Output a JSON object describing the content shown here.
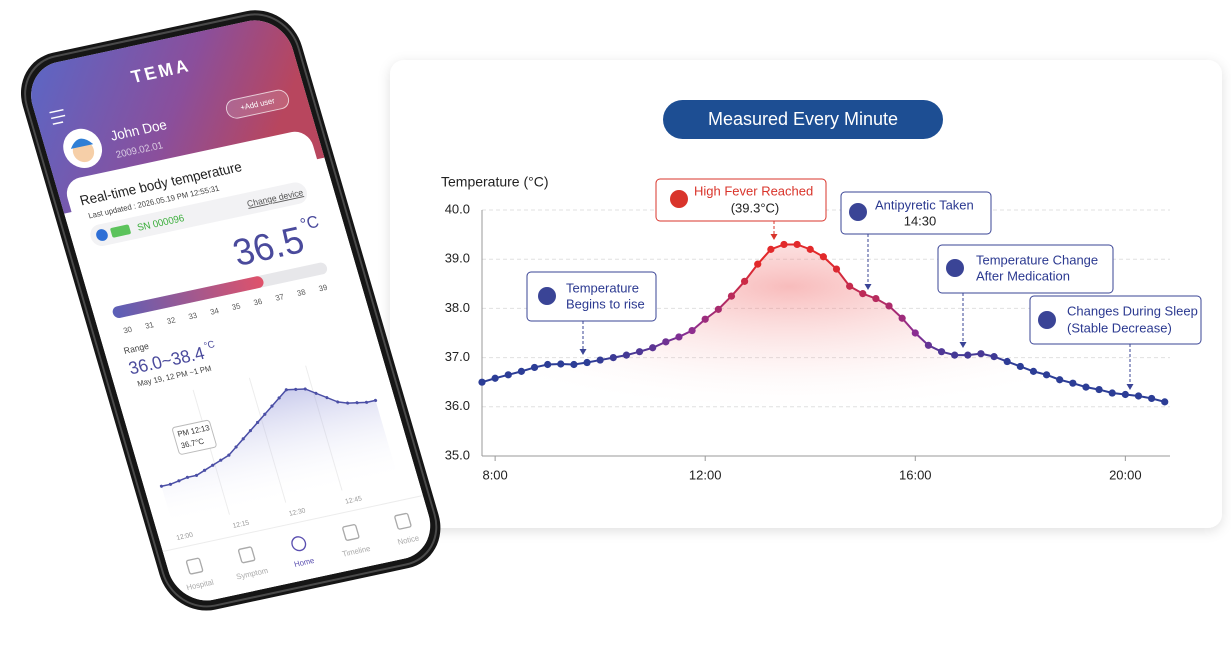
{
  "phone": {
    "logo": "TEMA",
    "user": {
      "name": "John Doe",
      "birth": "2009.02.01"
    },
    "add_user": "+Add user",
    "card": {
      "title": "Real-time body temperature",
      "updated": "Last updated : 2026.05.19 PM 12:55:31",
      "serial": "SN 000096",
      "change": "Change device",
      "temperature": 36.5,
      "unit": "°C",
      "scale": [
        30,
        31,
        32,
        33,
        34,
        35,
        36,
        37,
        38,
        39
      ],
      "range_label": "Range",
      "range": "36.0~38.4",
      "range_unit": "°C",
      "range_period": "May 19, 12 PM ~1 PM"
    },
    "chart": {
      "values": [
        36.3,
        36.3,
        36.35,
        36.4,
        36.4,
        36.5,
        36.6,
        36.7,
        36.8,
        37.0,
        37.2,
        37.4,
        37.6,
        37.8,
        38.0,
        38.2,
        38.4,
        38.35,
        38.3,
        38.1,
        37.9,
        37.7,
        37.6,
        37.55,
        37.5,
        37.5
      ],
      "ylim": [
        35,
        39
      ],
      "tooltip": [
        "PM 12:13",
        "36.7°C"
      ],
      "xticks": [
        "12:00",
        "12:15",
        "12:30",
        "12:45"
      ]
    },
    "nav": [
      "Hospital",
      "Symptom",
      "Home",
      "Timeline",
      "Notice"
    ]
  },
  "chart_data": {
    "type": "line",
    "title": "Measured Every Minute",
    "ylabel": "Temperature (°C)",
    "x": [
      7.75,
      8.0,
      8.25,
      8.5,
      8.75,
      9.0,
      9.25,
      9.5,
      9.75,
      10.0,
      10.25,
      10.5,
      10.75,
      11.0,
      11.25,
      11.5,
      11.75,
      12.0,
      12.25,
      12.5,
      12.75,
      13.0,
      13.25,
      13.5,
      13.75,
      14.0,
      14.25,
      14.5,
      14.75,
      15.0,
      15.25,
      15.5,
      15.75,
      16.0,
      16.25,
      16.5,
      16.75,
      17.0,
      17.25,
      17.5,
      17.75,
      18.0,
      18.25,
      18.5,
      18.75,
      19.0,
      19.25,
      19.5,
      19.75,
      20.0,
      20.25,
      20.5,
      20.75
    ],
    "values": [
      36.5,
      36.58,
      36.65,
      36.72,
      36.8,
      36.86,
      36.87,
      36.86,
      36.9,
      36.95,
      37.0,
      37.05,
      37.12,
      37.2,
      37.32,
      37.42,
      37.55,
      37.78,
      37.98,
      38.25,
      38.55,
      38.9,
      39.2,
      39.3,
      39.3,
      39.2,
      39.05,
      38.8,
      38.45,
      38.3,
      38.2,
      38.05,
      37.8,
      37.5,
      37.25,
      37.12,
      37.05,
      37.05,
      37.08,
      37.02,
      36.92,
      36.82,
      36.72,
      36.65,
      36.55,
      36.48,
      36.4,
      36.35,
      36.28,
      36.25,
      36.22,
      36.17,
      36.1
    ],
    "xlim": [
      7.75,
      20.85
    ],
    "ylim": [
      35,
      40
    ],
    "xticks": [
      {
        "value": 8,
        "label": "8:00"
      },
      {
        "value": 12,
        "label": "12:00"
      },
      {
        "value": 16,
        "label": "16:00"
      },
      {
        "value": 20,
        "label": "20:00"
      }
    ],
    "yticks": [
      {
        "value": 35,
        "label": "35.0"
      },
      {
        "value": 36,
        "label": "36.0"
      },
      {
        "value": 37,
        "label": "37.0"
      },
      {
        "value": 38,
        "label": "38.0"
      },
      {
        "value": 39,
        "label": "39.0"
      },
      {
        "value": 40,
        "label": "40.0"
      }
    ],
    "grid": true,
    "colors": [
      "#2c3d96",
      "#8b2d92",
      "#e2292b"
    ],
    "annotations": [
      {
        "lines": [
          "Temperature",
          "Begins to rise"
        ]
      },
      {
        "lines": [
          "High Fever Reached",
          "(39.3°C)"
        ]
      },
      {
        "lines": [
          "Antipyretic Taken",
          "14:30"
        ]
      },
      {
        "lines": [
          "Temperature Change",
          "After Medication"
        ]
      },
      {
        "lines": [
          "Changes During Sleep",
          "(Stable Decrease)"
        ]
      }
    ]
  }
}
